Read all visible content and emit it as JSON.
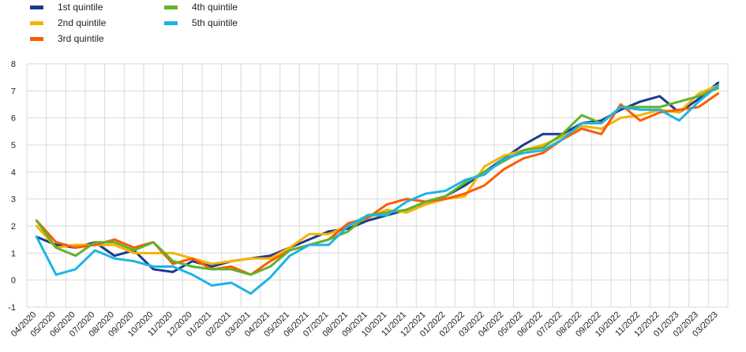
{
  "chart_data": {
    "type": "line",
    "title": "",
    "xlabel": "",
    "ylabel": "",
    "ylim": [
      -1,
      8
    ],
    "yticks": [
      -1,
      0,
      1,
      2,
      3,
      4,
      5,
      6,
      7,
      8
    ],
    "grid": true,
    "legend_placement": "top-left",
    "x": [
      "04/2020",
      "05/2020",
      "06/2020",
      "07/2020",
      "08/2020",
      "09/2020",
      "10/2020",
      "11/2020",
      "12/2020",
      "01/2021",
      "02/2021",
      "03/2021",
      "04/2021",
      "05/2021",
      "06/2021",
      "07/2021",
      "08/2021",
      "09/2021",
      "10/2021",
      "11/2021",
      "12/2021",
      "01/2022",
      "02/2022",
      "03/2022",
      "04/2022",
      "05/2022",
      "06/2022",
      "07/2022",
      "08/2022",
      "09/2022",
      "10/2022",
      "11/2022",
      "12/2022",
      "01/2023",
      "02/2023",
      "03/2023"
    ],
    "series": [
      {
        "name": "1st quintile",
        "color": "#1b3b8c",
        "values": [
          1.6,
          1.3,
          1.2,
          1.4,
          0.9,
          1.1,
          0.4,
          0.3,
          0.7,
          0.5,
          0.7,
          0.8,
          0.9,
          1.2,
          1.5,
          1.8,
          1.9,
          2.2,
          2.4,
          2.6,
          2.9,
          3.1,
          3.5,
          4.0,
          4.5,
          5.0,
          5.4,
          5.4,
          5.8,
          5.9,
          6.3,
          6.6,
          6.8,
          6.2,
          6.7,
          7.3
        ]
      },
      {
        "name": "2nd quintile",
        "color": "#f5b301",
        "values": [
          2.0,
          1.2,
          1.3,
          1.3,
          1.3,
          1.0,
          1.0,
          1.0,
          0.8,
          0.6,
          0.7,
          0.8,
          0.8,
          1.2,
          1.7,
          1.7,
          2.0,
          2.3,
          2.6,
          2.5,
          2.8,
          3.0,
          3.1,
          4.2,
          4.6,
          4.8,
          5.0,
          5.3,
          5.7,
          5.6,
          6.0,
          6.1,
          6.3,
          6.2,
          6.9,
          7.2
        ]
      },
      {
        "name": "3rd quintile",
        "color": "#ff5a00",
        "values": [
          2.2,
          1.4,
          1.2,
          1.3,
          1.5,
          1.2,
          1.4,
          0.6,
          0.8,
          0.4,
          0.5,
          0.2,
          0.7,
          1.1,
          1.3,
          1.5,
          2.1,
          2.3,
          2.8,
          3.0,
          2.9,
          3.0,
          3.2,
          3.5,
          4.1,
          4.5,
          4.7,
          5.2,
          5.6,
          5.4,
          6.5,
          5.9,
          6.2,
          6.3,
          6.4,
          6.9
        ]
      },
      {
        "name": "4th quintile",
        "color": "#61b22c",
        "values": [
          2.2,
          1.2,
          0.9,
          1.4,
          1.4,
          1.1,
          1.4,
          0.7,
          0.5,
          0.4,
          0.4,
          0.2,
          0.5,
          1.1,
          1.3,
          1.5,
          1.8,
          2.4,
          2.5,
          2.6,
          2.9,
          3.1,
          3.6,
          4.0,
          4.4,
          4.8,
          4.9,
          5.4,
          6.1,
          5.8,
          6.4,
          6.4,
          6.4,
          6.6,
          6.8,
          7.1
        ]
      },
      {
        "name": "5th quintile",
        "color": "#1fb3e5",
        "values": [
          1.6,
          0.2,
          0.4,
          1.1,
          0.8,
          0.7,
          0.5,
          0.5,
          0.2,
          -0.2,
          -0.1,
          -0.5,
          0.1,
          0.9,
          1.3,
          1.3,
          2.0,
          2.4,
          2.4,
          2.9,
          3.2,
          3.3,
          3.7,
          3.9,
          4.5,
          4.7,
          4.8,
          5.2,
          5.8,
          5.8,
          6.4,
          6.3,
          6.3,
          5.9,
          6.6,
          7.2
        ]
      }
    ]
  }
}
